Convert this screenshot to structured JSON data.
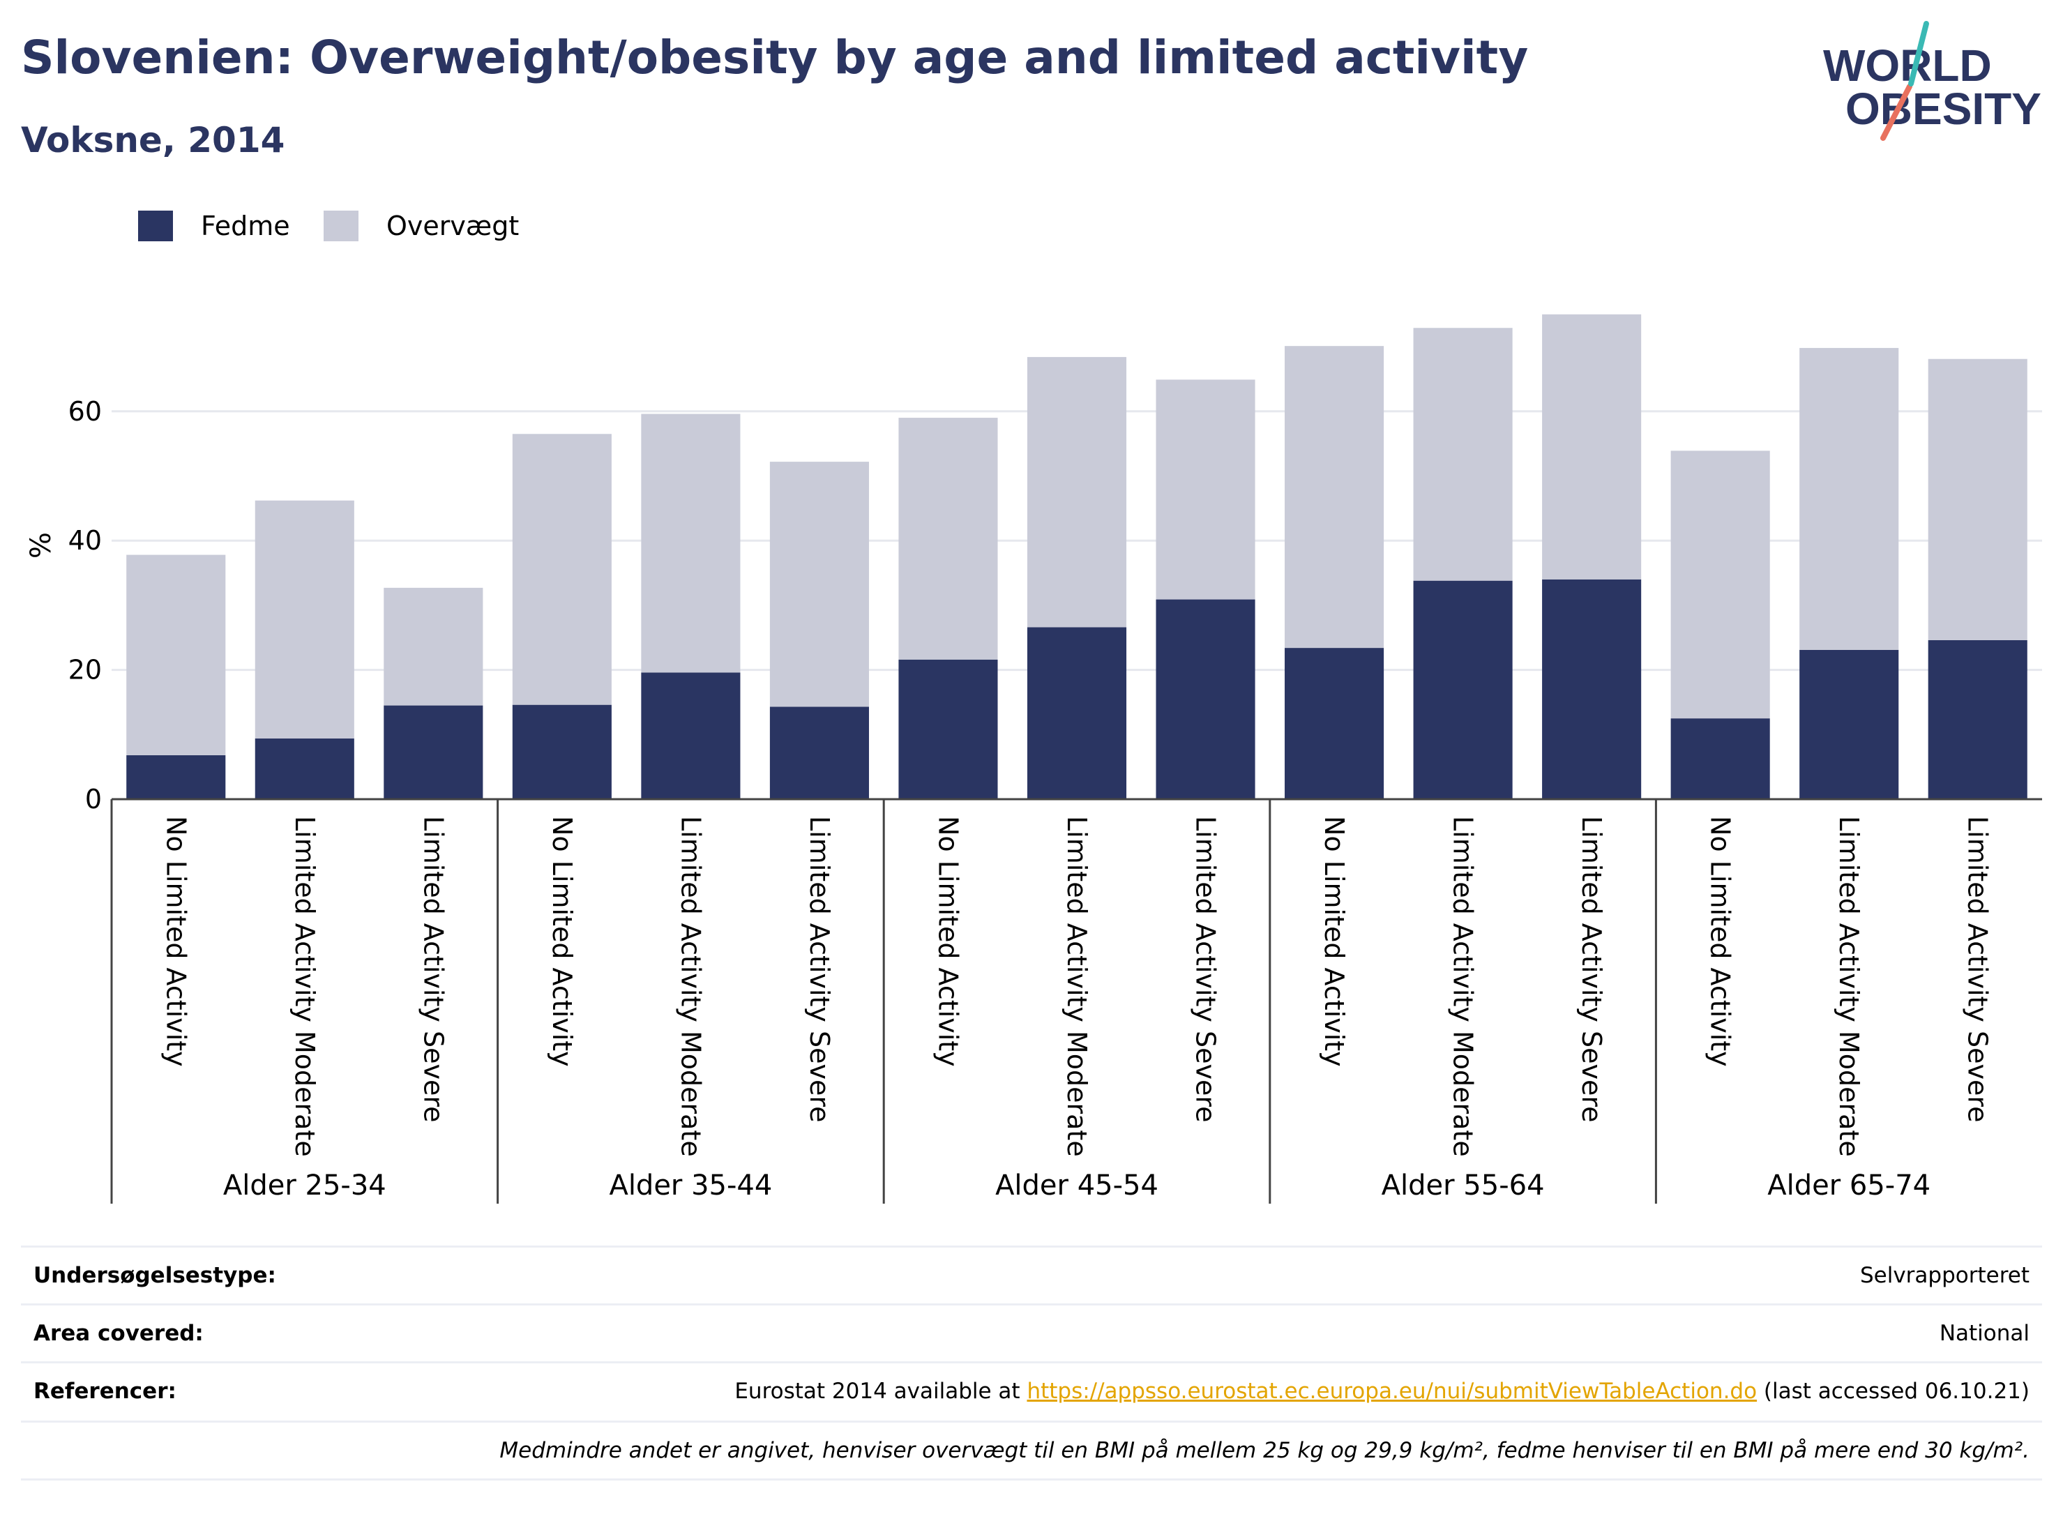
{
  "header": {
    "title": "Slovenien: Overweight/obesity by age and limited activity",
    "subtitle": "Voksne, 2014"
  },
  "logo": {
    "line1": "WORLD",
    "line2": "OBESITY"
  },
  "colors": {
    "fedme": "#2a3562",
    "overvaegt": "#c9cbd8",
    "title": "#2b3561",
    "grid": "#e6e8ee",
    "link": "#e3a400"
  },
  "chart_data": {
    "type": "bar",
    "stacked": true,
    "ylabel": "%",
    "ylim": [
      0,
      78
    ],
    "yticks": [
      0,
      20,
      40,
      60
    ],
    "grid": true,
    "legend_position": "top-left",
    "groups": [
      "Alder 25-34",
      "Alder 35-44",
      "Alder 45-54",
      "Alder 55-64",
      "Alder 65-74"
    ],
    "categories": [
      "No Limited Activity",
      "Limited Activity Moderate",
      "Limited Activity Severe"
    ],
    "series": [
      {
        "name": "Fedme",
        "values": [
          [
            6.8,
            9.4,
            14.5
          ],
          [
            14.6,
            19.6,
            14.3
          ],
          [
            21.6,
            26.6,
            30.9
          ],
          [
            23.4,
            33.8,
            34.0
          ],
          [
            12.5,
            23.1,
            24.6
          ]
        ]
      },
      {
        "name": "Overvægt",
        "values": [
          [
            31.0,
            36.8,
            18.2
          ],
          [
            41.9,
            40.0,
            37.9
          ],
          [
            37.4,
            41.8,
            34.0
          ],
          [
            46.7,
            39.1,
            41.0
          ],
          [
            41.4,
            46.7,
            43.5
          ]
        ]
      }
    ]
  },
  "info": {
    "survey_label": "Undersøgelsestype:",
    "survey_value": "Selvrapporteret",
    "area_label": "Area covered:",
    "area_value": "National",
    "ref_label": "Referencer:",
    "ref_prefix": "Eurostat 2014 available at ",
    "ref_link": "https://appsso.eurostat.ec.europa.eu/nui/submitViewTableAction.do",
    "ref_suffix": " (last accessed 06.10.21)",
    "note": "Medmindre andet er angivet, henviser overvægt til en BMI på mellem 25 kg og 29,9 kg/m², fedme henviser til en BMI på mere end 30 kg/m²."
  }
}
